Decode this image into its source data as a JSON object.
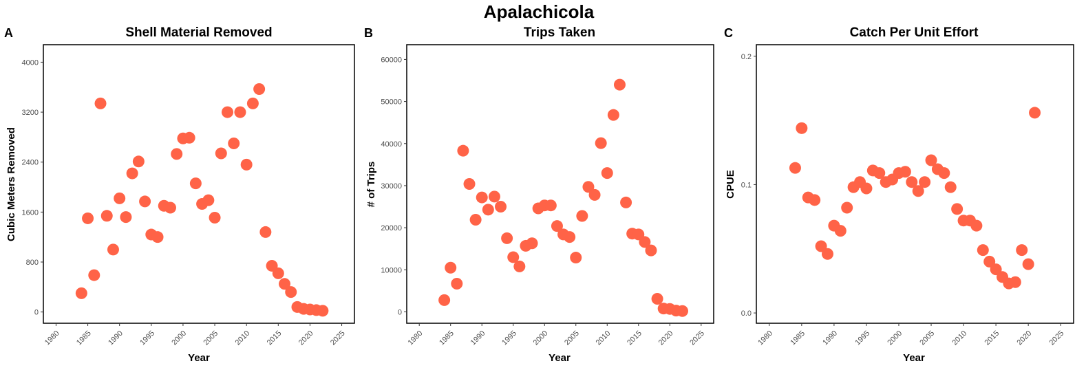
{
  "figure_title": "Apalachicola",
  "colors": {
    "point": "#FF6347",
    "frame": "#000000",
    "tick_text": "#4d4d4d"
  },
  "chart_data": [
    {
      "panel_label": "A",
      "type": "scatter",
      "title": "Shell Material Removed",
      "xlabel": "Year",
      "ylabel": "Cubic Meters Removed",
      "xlim": [
        1978,
        2027
      ],
      "ylim": [
        -180,
        4280
      ],
      "xticks": [
        1980,
        1985,
        1990,
        1995,
        2000,
        2005,
        2010,
        2015,
        2020,
        2025
      ],
      "yticks": [
        0,
        800,
        1600,
        2400,
        3200,
        4000
      ],
      "ytick_labels": [
        "0",
        "800",
        "1600",
        "2400",
        "3200",
        "4000"
      ],
      "grid": false,
      "x": [
        1984,
        1985,
        1986,
        1987,
        1988,
        1989,
        1990,
        1991,
        1992,
        1993,
        1994,
        1995,
        1996,
        1997,
        1998,
        1999,
        2000,
        2001,
        2002,
        2003,
        2004,
        2005,
        2006,
        2007,
        2008,
        2009,
        2010,
        2011,
        2012,
        2013,
        2014,
        2015,
        2016,
        2017,
        2018,
        2019,
        2020,
        2021,
        2022
      ],
      "y": [
        300,
        1500,
        590,
        3340,
        1540,
        1000,
        1820,
        1520,
        2220,
        2410,
        1770,
        1240,
        1200,
        1700,
        1670,
        2530,
        2780,
        2790,
        2060,
        1730,
        1790,
        1510,
        2540,
        3200,
        2700,
        3200,
        2360,
        3340,
        3570,
        1280,
        740,
        620,
        450,
        320,
        80,
        50,
        40,
        30,
        20
      ]
    },
    {
      "panel_label": "B",
      "type": "scatter",
      "title": "Trips Taken",
      "xlabel": "Year",
      "ylabel": "# of Trips",
      "xlim": [
        1978,
        2027
      ],
      "ylim": [
        -2700,
        63500
      ],
      "xticks": [
        1980,
        1985,
        1990,
        1995,
        2000,
        2005,
        2010,
        2015,
        2020,
        2025
      ],
      "yticks": [
        0,
        10000,
        20000,
        30000,
        40000,
        50000,
        60000
      ],
      "ytick_labels": [
        "0",
        "10000",
        "20000",
        "30000",
        "40000",
        "50000",
        "60000"
      ],
      "grid": false,
      "x": [
        1984,
        1985,
        1986,
        1987,
        1988,
        1989,
        1990,
        1991,
        1992,
        1993,
        1994,
        1995,
        1996,
        1997,
        1998,
        1999,
        2000,
        2001,
        2002,
        2003,
        2004,
        2005,
        2006,
        2007,
        2008,
        2009,
        2010,
        2011,
        2012,
        2013,
        2014,
        2015,
        2016,
        2017,
        2018,
        2019,
        2020,
        2021,
        2022
      ],
      "y": [
        2800,
        10500,
        6700,
        38300,
        30400,
        21900,
        27200,
        24300,
        27400,
        25000,
        17500,
        13000,
        10800,
        15700,
        16300,
        24600,
        25300,
        25300,
        20400,
        18400,
        17800,
        12900,
        22800,
        29700,
        27800,
        40100,
        33000,
        46800,
        54000,
        26000,
        18600,
        18400,
        16600,
        14600,
        3100,
        800,
        700,
        300,
        200
      ]
    },
    {
      "panel_label": "C",
      "type": "scatter",
      "title": "Catch Per Unit Effort",
      "xlabel": "Year",
      "ylabel": "CPUE",
      "xlim": [
        1978,
        2027
      ],
      "ylim": [
        -0.008,
        0.209
      ],
      "xticks": [
        1980,
        1985,
        1990,
        1995,
        2000,
        2005,
        2010,
        2015,
        2020,
        2025
      ],
      "yticks": [
        0.0,
        0.1,
        0.2
      ],
      "ytick_labels": [
        "0.0",
        "0.1",
        "0.2"
      ],
      "grid": false,
      "x": [
        1984,
        1985,
        1986,
        1987,
        1988,
        1989,
        1990,
        1991,
        1992,
        1993,
        1994,
        1995,
        1996,
        1997,
        1998,
        1999,
        2000,
        2001,
        2002,
        2003,
        2004,
        2005,
        2006,
        2007,
        2008,
        2009,
        2010,
        2011,
        2012,
        2013,
        2014,
        2015,
        2016,
        2017,
        2018,
        2019,
        2020,
        2021
      ],
      "y": [
        0.113,
        0.144,
        0.09,
        0.088,
        0.052,
        0.046,
        0.068,
        0.064,
        0.082,
        0.098,
        0.102,
        0.097,
        0.111,
        0.109,
        0.102,
        0.104,
        0.109,
        0.11,
        0.102,
        0.095,
        0.102,
        0.119,
        0.112,
        0.109,
        0.098,
        0.081,
        0.072,
        0.072,
        0.068,
        0.049,
        0.04,
        0.034,
        0.028,
        0.023,
        0.024,
        0.049,
        0.038,
        0.156
      ]
    }
  ]
}
